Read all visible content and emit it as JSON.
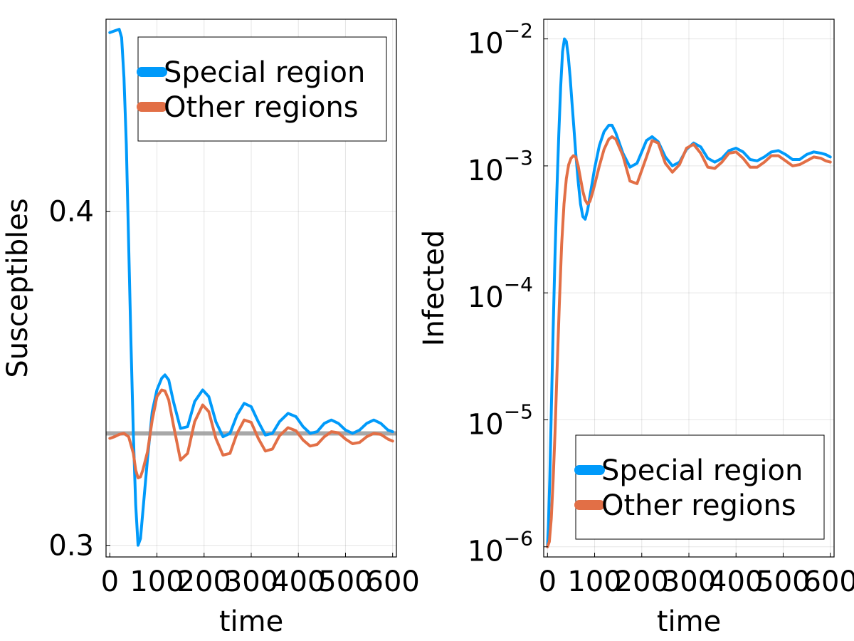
{
  "chart_data": [
    {
      "type": "line",
      "xlabel": "time",
      "ylabel": "Susceptibles",
      "yscale": "linear",
      "xlim": [
        -8,
        608
      ],
      "ylim": [
        0.2965,
        0.4575
      ],
      "xticks": [
        0,
        100,
        200,
        300,
        400,
        500,
        600
      ],
      "xtick_labels": [
        "0",
        "100",
        "200",
        "300",
        "400",
        "500",
        "600"
      ],
      "yticks": [
        0.3,
        0.4
      ],
      "ytick_labels": [
        "0.3",
        "0.4"
      ],
      "grid": true,
      "legend_position": "top-right",
      "reference_line": {
        "y": 0.3335,
        "color": "#999999"
      },
      "series": [
        {
          "name": "Special region",
          "color": "#009AFA",
          "x": [
            0,
            10,
            20,
            25,
            30,
            35,
            40,
            45,
            50,
            55,
            60,
            65,
            70,
            80,
            90,
            100,
            110,
            117,
            125,
            135,
            150,
            165,
            180,
            197,
            210,
            225,
            240,
            255,
            270,
            285,
            300,
            315,
            330,
            345,
            360,
            378,
            395,
            410,
            425,
            440,
            455,
            470,
            485,
            500,
            515,
            530,
            545,
            560,
            575,
            590,
            600
          ],
          "y": [
            0.4535,
            0.454,
            0.4545,
            0.452,
            0.44,
            0.42,
            0.39,
            0.36,
            0.333,
            0.312,
            0.3,
            0.302,
            0.31,
            0.326,
            0.34,
            0.3465,
            0.35,
            0.351,
            0.3495,
            0.343,
            0.335,
            0.3355,
            0.343,
            0.3465,
            0.3445,
            0.337,
            0.3325,
            0.3335,
            0.339,
            0.3425,
            0.3415,
            0.337,
            0.333,
            0.3335,
            0.337,
            0.3395,
            0.3385,
            0.3355,
            0.3335,
            0.334,
            0.3365,
            0.3375,
            0.3365,
            0.3345,
            0.3335,
            0.3345,
            0.3365,
            0.3375,
            0.3365,
            0.3345,
            0.334
          ]
        },
        {
          "name": "Other regions",
          "color": "#E26F46",
          "x": [
            0,
            10,
            20,
            30,
            40,
            50,
            55,
            60,
            65,
            70,
            80,
            90,
            100,
            110,
            117,
            125,
            135,
            150,
            165,
            180,
            197,
            210,
            225,
            240,
            255,
            270,
            285,
            300,
            315,
            330,
            345,
            360,
            378,
            395,
            410,
            425,
            440,
            455,
            470,
            485,
            500,
            515,
            530,
            545,
            560,
            575,
            590,
            600
          ],
          "y": [
            0.332,
            0.3325,
            0.3332,
            0.3335,
            0.3325,
            0.3275,
            0.3225,
            0.3202,
            0.3205,
            0.3225,
            0.328,
            0.3375,
            0.3445,
            0.3465,
            0.3462,
            0.3435,
            0.336,
            0.3255,
            0.3275,
            0.337,
            0.342,
            0.34,
            0.332,
            0.327,
            0.3275,
            0.3335,
            0.3375,
            0.3368,
            0.332,
            0.3282,
            0.3288,
            0.3328,
            0.3352,
            0.3343,
            0.3315,
            0.3297,
            0.3302,
            0.3325,
            0.334,
            0.3337,
            0.3318,
            0.3304,
            0.3308,
            0.3325,
            0.3335,
            0.3332,
            0.3318,
            0.3312
          ]
        }
      ]
    },
    {
      "type": "line",
      "xlabel": "time",
      "ylabel": "Infected",
      "yscale": "log10",
      "xlim": [
        -8,
        608
      ],
      "ylim": [
        -6.08,
        -1.845
      ],
      "xticks": [
        0,
        100,
        200,
        300,
        400,
        500,
        600
      ],
      "xtick_labels": [
        "0",
        "100",
        "200",
        "300",
        "400",
        "500",
        "600"
      ],
      "yticks": [
        -6,
        -5,
        -4,
        -3,
        -2
      ],
      "ytick_labels": [
        {
          "base": "10",
          "exp": "−6"
        },
        {
          "base": "10",
          "exp": "−5"
        },
        {
          "base": "10",
          "exp": "−4"
        },
        {
          "base": "10",
          "exp": "−3"
        },
        {
          "base": "10",
          "exp": "−2"
        }
      ],
      "grid": true,
      "legend_position": "bottom-right",
      "series": [
        {
          "name": "Special region",
          "color": "#009AFA",
          "x": [
            0,
            2,
            5,
            8,
            12,
            16,
            20,
            24,
            28,
            32,
            36,
            40,
            44,
            48,
            52,
            56,
            60,
            65,
            70,
            75,
            80,
            85,
            90,
            100,
            110,
            120,
            130,
            137,
            145,
            160,
            175,
            190,
            210,
            222,
            235,
            250,
            265,
            280,
            295,
            310,
            325,
            340,
            355,
            370,
            385,
            400,
            415,
            430,
            445,
            460,
            475,
            490,
            505,
            520,
            535,
            550,
            565,
            580,
            590,
            600
          ],
          "y": [
            -6.0,
            -5.83,
            -5.45,
            -4.95,
            -4.3,
            -3.7,
            -3.2,
            -2.75,
            -2.38,
            -2.1,
            -2.0,
            -2.02,
            -2.13,
            -2.3,
            -2.5,
            -2.7,
            -2.9,
            -3.12,
            -3.3,
            -3.4,
            -3.42,
            -3.35,
            -3.24,
            -3.02,
            -2.84,
            -2.73,
            -2.68,
            -2.68,
            -2.74,
            -2.9,
            -3.01,
            -2.98,
            -2.8,
            -2.77,
            -2.81,
            -2.93,
            -3.0,
            -2.97,
            -2.87,
            -2.82,
            -2.85,
            -2.94,
            -2.97,
            -2.94,
            -2.88,
            -2.86,
            -2.89,
            -2.95,
            -2.96,
            -2.93,
            -2.89,
            -2.88,
            -2.91,
            -2.95,
            -2.95,
            -2.91,
            -2.89,
            -2.9,
            -2.91,
            -2.93
          ]
        },
        {
          "name": "Other regions",
          "color": "#E26F46",
          "x": [
            0,
            4,
            8,
            12,
            16,
            20,
            25,
            30,
            35,
            40,
            45,
            50,
            55,
            60,
            65,
            70,
            75,
            80,
            85,
            90,
            95,
            100,
            110,
            120,
            130,
            137,
            145,
            160,
            175,
            190,
            210,
            222,
            235,
            250,
            265,
            280,
            295,
            310,
            325,
            340,
            355,
            370,
            385,
            400,
            415,
            430,
            445,
            460,
            475,
            490,
            505,
            520,
            535,
            550,
            565,
            580,
            590,
            600
          ],
          "y": [
            -6.0,
            -5.96,
            -5.78,
            -5.48,
            -5.1,
            -4.65,
            -4.1,
            -3.62,
            -3.3,
            -3.1,
            -2.99,
            -2.94,
            -2.92,
            -2.93,
            -3.0,
            -3.1,
            -3.2,
            -3.27,
            -3.3,
            -3.28,
            -3.22,
            -3.15,
            -3.0,
            -2.87,
            -2.79,
            -2.77,
            -2.79,
            -2.92,
            -3.12,
            -3.14,
            -2.93,
            -2.8,
            -2.82,
            -2.98,
            -3.05,
            -2.99,
            -2.86,
            -2.83,
            -2.9,
            -3.01,
            -3.02,
            -2.97,
            -2.9,
            -2.89,
            -2.94,
            -3.01,
            -3.01,
            -2.97,
            -2.92,
            -2.92,
            -2.96,
            -3.0,
            -2.99,
            -2.96,
            -2.93,
            -2.94,
            -2.96,
            -2.97
          ]
        }
      ]
    }
  ]
}
